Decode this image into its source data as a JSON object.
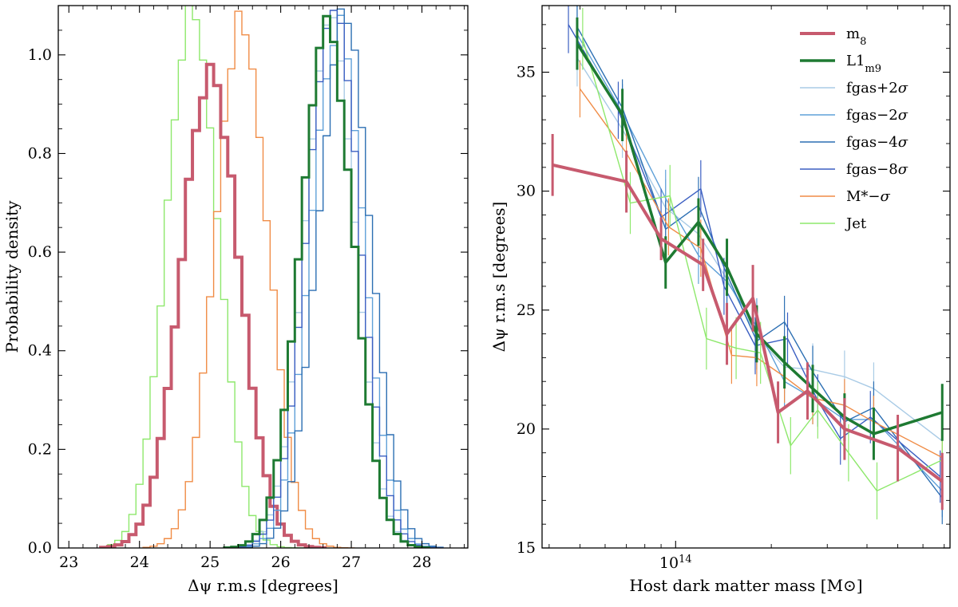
{
  "chart_data": [
    {
      "type": "histogram",
      "xlabel": "Δψ r.m.s [degrees]",
      "ylabel": "Probability density",
      "xlim": [
        22.85,
        28.65
      ],
      "ylim": [
        0.0,
        1.1
      ],
      "xticks": [
        "23",
        "24",
        "25",
        "26",
        "27",
        "28"
      ],
      "yticks": [
        "0.0",
        "0.2",
        "0.4",
        "0.6",
        "0.8",
        "1.0"
      ],
      "series": [
        {
          "name": "Jet",
          "color": "#8ee86c",
          "width": 1.4,
          "mean": 24.75,
          "sigma": 0.36,
          "peak": 1.1,
          "lo": 23.45,
          "hi": 26.35
        },
        {
          "name": "M*−σ",
          "color": "#f08c46",
          "width": 1.4,
          "mean": 25.45,
          "sigma": 0.37,
          "peak": 1.07,
          "lo": 24.05,
          "hi": 27.0
        },
        {
          "name": "m8",
          "color": "#c75a6e",
          "width": 4,
          "mean": 25.0,
          "sigma": 0.41,
          "peak": 0.965,
          "lo": 23.45,
          "hi": 26.6
        },
        {
          "name": "fgas+2σ",
          "color": "#a9cbe6",
          "width": 1.4,
          "mean": 26.7,
          "sigma": 0.36,
          "peak": 1.07,
          "lo": 25.2,
          "hi": 28.1
        },
        {
          "name": "fgas−2σ",
          "color": "#5fa0d8",
          "width": 1.4,
          "mean": 26.8,
          "sigma": 0.37,
          "peak": 1.06,
          "lo": 25.2,
          "hi": 28.2
        },
        {
          "name": "fgas−4σ",
          "color": "#2c6fb3",
          "width": 1.4,
          "mean": 26.9,
          "sigma": 0.37,
          "peak": 1.08,
          "lo": 25.2,
          "hi": 28.3
        },
        {
          "name": "fgas−8σ",
          "color": "#3b5fc2",
          "width": 1.4,
          "mean": 26.75,
          "sigma": 0.37,
          "peak": 1.09,
          "lo": 25.2,
          "hi": 28.25
        },
        {
          "name": "L1_m9",
          "color": "#1e7a32",
          "width": 3,
          "mean": 26.65,
          "sigma": 0.37,
          "peak": 1.07,
          "lo": 25.2,
          "hi": 28.1
        }
      ]
    },
    {
      "type": "line",
      "xlabel": "Host dark matter mass [M⊙]",
      "ylabel": "Δψ r.m.s [degrees]",
      "xscale": "log",
      "xlim": [
        38000000000000.0,
        730000000000000.0
      ],
      "ylim": [
        15,
        37.8
      ],
      "xticks": [
        {
          "value": 100000000000000.0,
          "base": "10",
          "exp": "14"
        }
      ],
      "yticks": [
        "15",
        "20",
        "25",
        "30",
        "35"
      ],
      "legend_position": "top-right",
      "series": [
        {
          "name": "m8",
          "label_base": "m",
          "label_sub": "8",
          "color": "#c75a6e",
          "width": 4,
          "x": [
            41000000000000.0,
            70000000000000.0,
            90000000000000.0,
            122000000000000.0,
            145000000000000.0,
            175000000000000.0,
            210000000000000.0,
            260000000000000.0,
            340000000000000.0,
            500000000000000.0,
            690000000000000.0
          ],
          "y": [
            31.1,
            30.4,
            28.0,
            26.9,
            24.0,
            25.5,
            20.7,
            21.6,
            20.0,
            19.2,
            17.8
          ],
          "err": [
            1.3,
            1.3,
            0.9,
            1.1,
            1.3,
            1.4,
            1.3,
            1.2,
            1.3,
            1.4,
            1.2
          ]
        },
        {
          "name": "L1_m9",
          "label_base": "L1",
          "label_sub": "m9",
          "color": "#1e7a32",
          "width": 3.5,
          "x": [
            49000000000000.0,
            68000000000000.0,
            93000000000000.0,
            118000000000000.0,
            145000000000000.0,
            180000000000000.0,
            220000000000000.0,
            270000000000000.0,
            340000000000000.0,
            420000000000000.0,
            690000000000000.0
          ],
          "y": [
            36.2,
            33.2,
            27.0,
            28.7,
            26.8,
            24.0,
            22.8,
            21.7,
            20.5,
            19.8,
            20.7
          ],
          "err": [
            1.1,
            1.1,
            1.1,
            1.0,
            1.2,
            1.2,
            1.1,
            1.0,
            1.0,
            1.1,
            1.2
          ]
        },
        {
          "name": "fgas+2σ",
          "label_base": "fgas+2",
          "label_sym": "σ",
          "color": "#a9cbe6",
          "width": 1.4,
          "x": [
            49000000000000.0,
            68000000000000.0,
            93000000000000.0,
            118000000000000.0,
            145000000000000.0,
            180000000000000.0,
            220000000000000.0,
            270000000000000.0,
            340000000000000.0,
            420000000000000.0,
            690000000000000.0
          ],
          "y": [
            35.6,
            32.6,
            29.3,
            28.2,
            26.3,
            23.9,
            22.6,
            22.5,
            22.2,
            21.7,
            19.5
          ],
          "err": [
            1.2,
            1.2,
            1.2,
            1.2,
            1.2,
            1.2,
            1.1,
            1.1,
            1.1,
            1.1,
            1.1
          ]
        },
        {
          "name": "fgas−2σ",
          "label_base": "fgas−2",
          "label_sym": "σ",
          "color": "#5fa0d8",
          "width": 1.4,
          "x": [
            49000000000000.0,
            68000000000000.0,
            93000000000000.0,
            118000000000000.0,
            145000000000000.0,
            180000000000000.0,
            220000000000000.0,
            270000000000000.0,
            340000000000000.0,
            420000000000000.0,
            690000000000000.0
          ],
          "y": [
            36.6,
            33.3,
            29.7,
            27.3,
            26.2,
            24.3,
            22.0,
            21.3,
            20.4,
            20.4,
            17.4
          ],
          "err": [
            1.2,
            1.2,
            1.2,
            1.2,
            1.2,
            1.2,
            1.1,
            1.1,
            1.1,
            1.1,
            1.1
          ]
        },
        {
          "name": "fgas−4σ",
          "label_base": "fgas−4",
          "label_sym": "σ",
          "color": "#2c6fb3",
          "width": 1.4,
          "x": [
            49000000000000.0,
            68000000000000.0,
            93000000000000.0,
            118000000000000.0,
            145000000000000.0,
            180000000000000.0,
            220000000000000.0,
            270000000000000.0,
            340000000000000.0,
            420000000000000.0,
            690000000000000.0
          ],
          "y": [
            36.9,
            33.5,
            28.4,
            29.4,
            26.5,
            23.7,
            24.5,
            22.4,
            20.3,
            20.9,
            17.1
          ],
          "err": [
            1.2,
            1.2,
            1.2,
            1.2,
            1.2,
            1.2,
            1.1,
            1.1,
            1.1,
            1.1,
            1.1
          ]
        },
        {
          "name": "fgas−8σ",
          "label_base": "fgas−8",
          "label_sym": "σ",
          "color": "#3b5fc2",
          "width": 1.4,
          "x": [
            46000000000000.0,
            66000000000000.0,
            90000000000000.0,
            120000000000000.0,
            142000000000000.0,
            178000000000000.0,
            225000000000000.0,
            280000000000000.0,
            330000000000000.0,
            410000000000000.0,
            680000000000000.0
          ],
          "y": [
            37.0,
            33.4,
            28.9,
            30.1,
            26.0,
            23.5,
            23.8,
            21.2,
            19.6,
            20.5,
            18.0
          ],
          "err": [
            1.2,
            1.2,
            1.2,
            1.2,
            1.2,
            1.2,
            1.1,
            1.1,
            1.1,
            1.1,
            1.1
          ]
        },
        {
          "name": "M*−σ",
          "label_base": "M*−",
          "label_sym": "σ",
          "color": "#f08c46",
          "width": 1.4,
          "x": [
            50000000000000.0,
            70000000000000.0,
            95000000000000.0,
            120000000000000.0,
            150000000000000.0,
            180000000000000.0,
            220000000000000.0,
            270000000000000.0,
            340000000000000.0,
            420000000000000.0,
            690000000000000.0
          ],
          "y": [
            34.3,
            31.6,
            28.5,
            27.6,
            23.1,
            23.0,
            22.2,
            21.3,
            21.0,
            20.3,
            18.8
          ],
          "err": [
            1.2,
            1.2,
            1.2,
            1.2,
            1.2,
            1.2,
            1.1,
            1.1,
            1.1,
            1.1,
            1.1
          ]
        },
        {
          "name": "Jet",
          "label_base": "Jet",
          "color": "#8ee86c",
          "width": 1.4,
          "x": [
            51000000000000.0,
            72000000000000.0,
            96000000000000.0,
            125000000000000.0,
            155000000000000.0,
            185000000000000.0,
            230000000000000.0,
            280000000000000.0,
            350000000000000.0,
            430000000000000.0,
            690000000000000.0
          ],
          "y": [
            36.4,
            29.5,
            29.8,
            23.8,
            23.4,
            23.2,
            19.3,
            20.8,
            19.0,
            17.4,
            18.7
          ],
          "err": [
            1.3,
            1.3,
            1.3,
            1.3,
            1.3,
            1.3,
            1.2,
            1.2,
            1.2,
            1.2,
            1.2
          ]
        }
      ]
    }
  ]
}
